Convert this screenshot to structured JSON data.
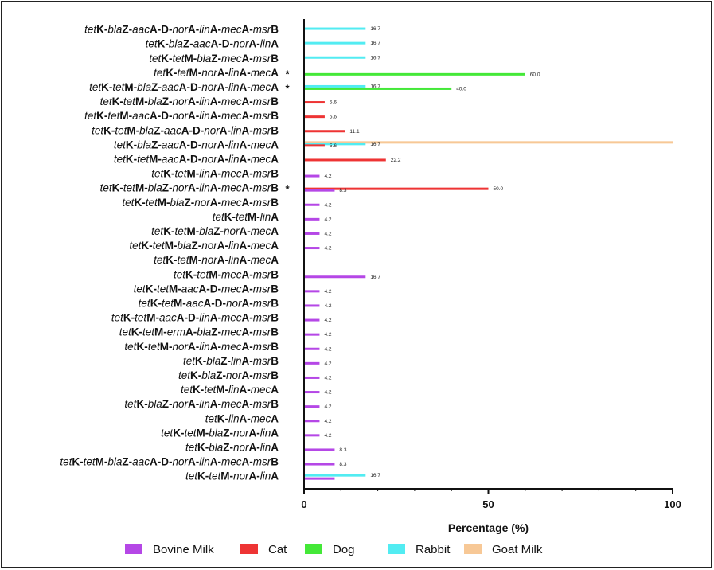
{
  "chart_data": {
    "type": "bar",
    "orientation": "horizontal",
    "xlabel": "Percentage (%)",
    "xlim": [
      0,
      100
    ],
    "xticks": [
      0,
      50,
      100
    ],
    "legend_position": "bottom",
    "series": [
      {
        "name": "Bovine Milk",
        "color": "#b547e6"
      },
      {
        "name": "Cat",
        "color": "#ee3434"
      },
      {
        "name": "Dog",
        "color": "#44e838"
      },
      {
        "name": "Rabbit",
        "color": "#52ecf2"
      },
      {
        "name": "Goat Milk",
        "color": "#f7c896"
      }
    ],
    "categories": [
      {
        "label": "tetK-blaZ-aacA-D-norA-linA-mecA-msrB",
        "bold": [
          false,
          true,
          false,
          true,
          false,
          true,
          false,
          true,
          false,
          true,
          false,
          true,
          false,
          true
        ],
        "star": false,
        "bars": [
          {
            "series": "Rabbit",
            "value": 16.7,
            "label": "16.7"
          }
        ]
      },
      {
        "label": "tetK-blaZ-aacA-D-norA-linA",
        "bold": [
          false,
          true,
          false,
          true,
          false,
          true,
          false,
          true,
          false,
          true
        ],
        "star": false,
        "bars": [
          {
            "series": "Rabbit",
            "value": 16.7,
            "label": "16.7"
          }
        ]
      },
      {
        "label": "tetK-tetM-blaZ-mecA-msrB",
        "bold": [
          false,
          true,
          false,
          true,
          false,
          true,
          false,
          true,
          false,
          true
        ],
        "star": false,
        "bars": [
          {
            "series": "Rabbit",
            "value": 16.7,
            "label": "16.7"
          }
        ]
      },
      {
        "label": "tetK-tetM-norA-linA-mecA",
        "bold": [
          false,
          true,
          false,
          true,
          false,
          true,
          false,
          true,
          false,
          true
        ],
        "star": true,
        "bars": [
          {
            "series": "Dog",
            "value": 60.0,
            "label": "60.0"
          }
        ]
      },
      {
        "label": "tetK-tetM-blaZ-aacA-D-norA-linA-mecA",
        "bold": [
          false,
          true,
          false,
          true,
          false,
          true,
          false,
          true,
          false,
          true,
          false,
          true,
          false,
          true
        ],
        "star": true,
        "bars": [
          {
            "series": "Rabbit",
            "value": 16.7,
            "label": "16.7"
          },
          {
            "series": "Dog",
            "value": 40.0,
            "label": "40.0"
          }
        ]
      },
      {
        "label": "tetK-tetM-blaZ-norA-linA-mecA-msrB",
        "bold": [
          false,
          true,
          false,
          true,
          false,
          true,
          false,
          true,
          false,
          true,
          false,
          true,
          false,
          true
        ],
        "star": false,
        "bars": [
          {
            "series": "Cat",
            "value": 5.6,
            "label": "5.6"
          }
        ]
      },
      {
        "label": "tetK-tetM-aacA-D-norA-linA-mecA-msrB",
        "bold": [
          false,
          true,
          false,
          true,
          false,
          true,
          false,
          true,
          false,
          true,
          false,
          true,
          false,
          true
        ],
        "star": false,
        "bars": [
          {
            "series": "Cat",
            "value": 5.6,
            "label": "5.6"
          }
        ]
      },
      {
        "label": "tetK-tetM-blaZ-aacA-D-norA-linA-msrB",
        "bold": [
          false,
          true,
          false,
          true,
          false,
          true,
          false,
          true,
          false,
          true,
          false,
          true,
          false,
          true
        ],
        "star": false,
        "bars": [
          {
            "series": "Cat",
            "value": 11.1,
            "label": "11.1"
          }
        ]
      },
      {
        "label": "tetK-blaZ-aacA-D-norA-linA-mecA",
        "bold": [
          false,
          true,
          false,
          true,
          false,
          true,
          false,
          true,
          false,
          true,
          false,
          true
        ],
        "star": false,
        "bars": [
          {
            "series": "Goat Milk",
            "value": 100,
            "label": ""
          },
          {
            "series": "Rabbit",
            "value": 16.7,
            "label": "16.7"
          },
          {
            "series": "Cat",
            "value": 5.6,
            "label": "5.6"
          }
        ]
      },
      {
        "label": "tetK-tetM-aacA-D-norA-linA-mecA",
        "bold": [
          false,
          true,
          false,
          true,
          false,
          true,
          false,
          true,
          false,
          true,
          false,
          true
        ],
        "star": false,
        "bars": [
          {
            "series": "Cat",
            "value": 22.2,
            "label": "22.2"
          }
        ]
      },
      {
        "label": "tetK-tetM-linA-mecA-msrB",
        "bold": [
          false,
          true,
          false,
          true,
          false,
          true,
          false,
          true,
          false,
          true
        ],
        "star": false,
        "bars": [
          {
            "series": "Bovine Milk",
            "value": 4.2,
            "label": "4.2"
          }
        ]
      },
      {
        "label": "tetK-tetM-blaZ-norA-linA-mecA-msrB",
        "bold": [
          false,
          true,
          false,
          true,
          false,
          true,
          false,
          true,
          false,
          true,
          false,
          true,
          false,
          true
        ],
        "star": true,
        "bars": [
          {
            "series": "Cat",
            "value": 50.0,
            "label": "50.0"
          },
          {
            "series": "Bovine Milk",
            "value": 8.3,
            "label": "8.3"
          }
        ]
      },
      {
        "label": "tetK-tetM-blaZ-norA-mecA-msrB",
        "bold": [
          false,
          true,
          false,
          true,
          false,
          true,
          false,
          true,
          false,
          true,
          false,
          true
        ],
        "star": false,
        "bars": [
          {
            "series": "Bovine Milk",
            "value": 4.2,
            "label": "4.2"
          }
        ]
      },
      {
        "label": "tetK-tetM-linA",
        "bold": [
          false,
          true,
          false,
          true,
          false,
          true
        ],
        "star": false,
        "bars": [
          {
            "series": "Bovine Milk",
            "value": 4.2,
            "label": "4.2"
          }
        ]
      },
      {
        "label": "tetK-tetM-blaZ-norA-mecA",
        "bold": [
          false,
          true,
          false,
          true,
          false,
          true,
          false,
          true,
          false,
          true
        ],
        "star": false,
        "bars": [
          {
            "series": "Bovine Milk",
            "value": 4.2,
            "label": "4.2"
          }
        ]
      },
      {
        "label": "tetK-tetM-blaZ-norA-linA-mecA",
        "bold": [
          false,
          true,
          false,
          true,
          false,
          true,
          false,
          true,
          false,
          true,
          false,
          true
        ],
        "star": false,
        "bars": [
          {
            "series": "Bovine Milk",
            "value": 4.2,
            "label": "4.2"
          }
        ]
      },
      {
        "label": "tetK-tetM-norA-linA-mecA",
        "bold": [
          false,
          true,
          false,
          true,
          false,
          true,
          false,
          true,
          false,
          true
        ],
        "star": false,
        "bars": []
      },
      {
        "label": "tetK-tetM-mecA-msrB",
        "bold": [
          false,
          true,
          false,
          true,
          false,
          true,
          false,
          true
        ],
        "star": false,
        "bars": [
          {
            "series": "Bovine Milk",
            "value": 16.7,
            "label": "16.7"
          }
        ]
      },
      {
        "label": "tetK-tetM-aacA-D-mecA-msrB",
        "bold": [
          false,
          true,
          false,
          true,
          false,
          true,
          false,
          true,
          false,
          true
        ],
        "star": false,
        "bars": [
          {
            "series": "Bovine Milk",
            "value": 4.2,
            "label": "4.2"
          }
        ]
      },
      {
        "label": "tetK-tetM-aacA-D-norA-msrB",
        "bold": [
          false,
          true,
          false,
          true,
          false,
          true,
          false,
          true,
          false,
          true
        ],
        "star": false,
        "bars": [
          {
            "series": "Bovine Milk",
            "value": 4.2,
            "label": "4.2"
          }
        ]
      },
      {
        "label": "tetK-tetM-aacA-D-linA-mecA-msrB",
        "bold": [
          false,
          true,
          false,
          true,
          false,
          true,
          false,
          true,
          false,
          true,
          false,
          true
        ],
        "star": false,
        "bars": [
          {
            "series": "Bovine Milk",
            "value": 4.2,
            "label": "4.2"
          }
        ]
      },
      {
        "label": "tetK-tetM-ermA-blaZ-mecA-msrB",
        "bold": [
          false,
          true,
          false,
          true,
          false,
          true,
          false,
          true,
          false,
          true,
          false,
          true
        ],
        "star": false,
        "bars": [
          {
            "series": "Bovine Milk",
            "value": 4.2,
            "label": "4.2"
          }
        ]
      },
      {
        "label": "tetK-tetM-norA-linA-mecA-msrB",
        "bold": [
          false,
          true,
          false,
          true,
          false,
          true,
          false,
          true,
          false,
          true,
          false,
          true
        ],
        "star": false,
        "bars": [
          {
            "series": "Bovine Milk",
            "value": 4.2,
            "label": "4.2"
          }
        ]
      },
      {
        "label": "tetK-blaZ-linA-msrB",
        "bold": [
          false,
          true,
          false,
          true,
          false,
          true,
          false,
          true
        ],
        "star": false,
        "bars": [
          {
            "series": "Bovine Milk",
            "value": 4.2,
            "label": "4.2"
          }
        ]
      },
      {
        "label": "tetK-blaZ-norA-msrB",
        "bold": [
          false,
          true,
          false,
          true,
          false,
          true,
          false,
          true
        ],
        "star": false,
        "bars": [
          {
            "series": "Bovine Milk",
            "value": 4.2,
            "label": "4.2"
          }
        ]
      },
      {
        "label": "tetK-tetM-linA-mecA",
        "bold": [
          false,
          true,
          false,
          true,
          false,
          true,
          false,
          true
        ],
        "star": false,
        "bars": [
          {
            "series": "Bovine Milk",
            "value": 4.2,
            "label": "4.2"
          }
        ]
      },
      {
        "label": "tetK-blaZ-norA-linA-mecA-msrB",
        "bold": [
          false,
          true,
          false,
          true,
          false,
          true,
          false,
          true,
          false,
          true,
          false,
          true
        ],
        "star": false,
        "bars": [
          {
            "series": "Bovine Milk",
            "value": 4.2,
            "label": "4.2"
          }
        ]
      },
      {
        "label": "tetK-linA-mecA",
        "bold": [
          false,
          true,
          false,
          true,
          false,
          true
        ],
        "star": false,
        "bars": [
          {
            "series": "Bovine Milk",
            "value": 4.2,
            "label": "4.2"
          }
        ]
      },
      {
        "label": "tetK-tetM-blaZ-norA-linA",
        "bold": [
          false,
          true,
          false,
          true,
          false,
          true,
          false,
          true,
          false,
          true
        ],
        "star": false,
        "bars": [
          {
            "series": "Bovine Milk",
            "value": 4.2,
            "label": "4.2"
          }
        ]
      },
      {
        "label": "tetK-blaZ-norA-linA",
        "bold": [
          false,
          true,
          false,
          true,
          false,
          true,
          false,
          true
        ],
        "star": false,
        "bars": [
          {
            "series": "Bovine Milk",
            "value": 8.3,
            "label": "8.3"
          }
        ]
      },
      {
        "label": "tetK-tetM-blaZ-aacA-D-norA-linA-mecA-msrB",
        "bold": [
          false,
          true,
          false,
          true,
          false,
          true,
          false,
          true,
          false,
          true,
          false,
          true,
          false,
          true,
          false,
          true
        ],
        "star": false,
        "bars": [
          {
            "series": "Bovine Milk",
            "value": 8.3,
            "label": "8.3"
          }
        ]
      },
      {
        "label": "tetK-tetM-norA-linA",
        "bold": [
          false,
          true,
          false,
          true,
          false,
          true,
          false,
          true
        ],
        "star": false,
        "bars": [
          {
            "series": "Rabbit",
            "value": 16.7,
            "label": "16.7"
          },
          {
            "series": "Bovine Milk",
            "value": 8.3,
            "label": ""
          }
        ]
      }
    ],
    "star_symbol": "*"
  }
}
